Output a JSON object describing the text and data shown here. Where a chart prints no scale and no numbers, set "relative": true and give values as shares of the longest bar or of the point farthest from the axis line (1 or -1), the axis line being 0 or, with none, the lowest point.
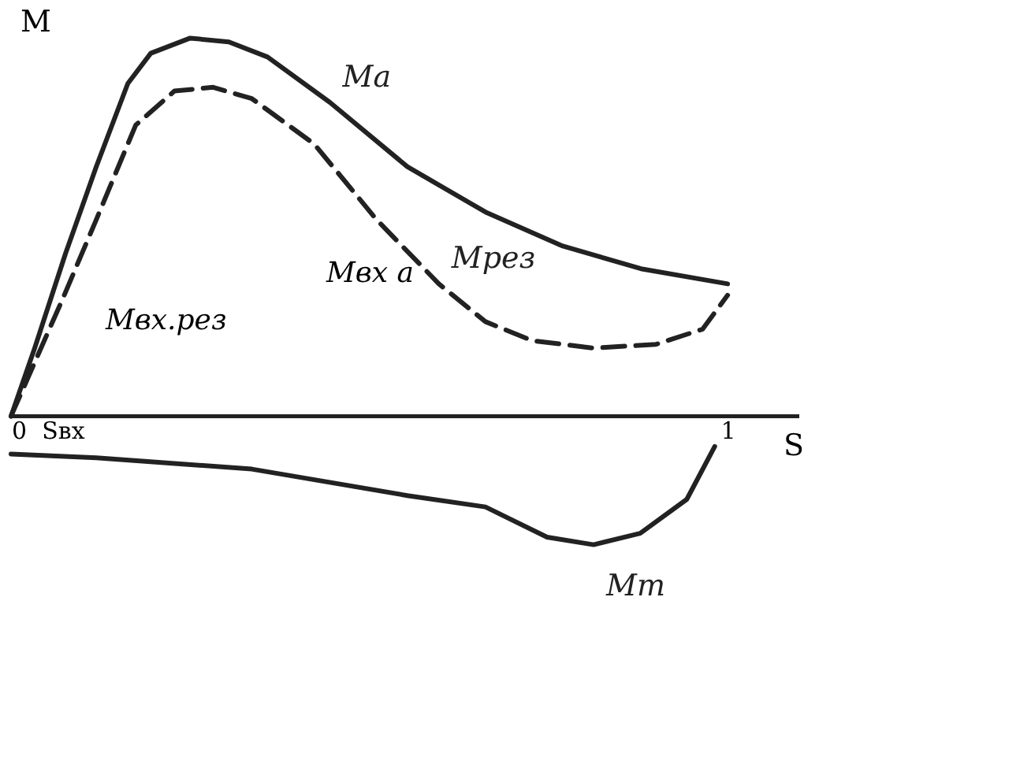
{
  "chart_data": {
    "type": "line",
    "relative": true,
    "xlabel": "S",
    "ylabel": "M",
    "xlim": [
      0,
      1.1
    ],
    "xticks": [
      0,
      {
        "value": 0.072,
        "label": "Sвх"
      },
      1
    ],
    "line_style": "solid",
    "marker": "none",
    "grid": false,
    "series": [
      {
        "name": "Ma",
        "color": "#222222",
        "x": [
          0,
          0.033,
          0.076,
          0.119,
          0.163,
          0.195,
          0.25,
          0.304,
          0.358,
          0.445,
          0.553,
          0.662,
          0.77,
          0.879,
          1
        ],
        "values": [
          0,
          0.18,
          0.43,
          0.66,
          0.88,
          0.96,
          1.0,
          0.99,
          0.95,
          0.83,
          0.66,
          0.54,
          0.45,
          0.39,
          0.35
        ]
      },
      {
        "name": "Mрез",
        "color": "#222222",
        "line_style": "dashed",
        "x": [
          0,
          0.072,
          0.119,
          0.174,
          0.228,
          0.282,
          0.336,
          0.423,
          0.51,
          0.597,
          0.662,
          0.727,
          0.813,
          0.9,
          0.965,
          1
        ],
        "values": [
          0,
          0.31,
          0.52,
          0.77,
          0.86,
          0.87,
          0.84,
          0.72,
          0.52,
          0.35,
          0.25,
          0.2,
          0.18,
          0.19,
          0.23,
          0.32
        ]
      },
      {
        "name": "Mт",
        "color": "#222222",
        "x": [
          0,
          0.119,
          0.336,
          0.553,
          0.662,
          0.748,
          0.813,
          0.878,
          0.943,
          0.982
        ],
        "values": [
          -0.1,
          -0.11,
          -0.14,
          -0.21,
          -0.24,
          -0.32,
          -0.34,
          -0.31,
          -0.22,
          -0.08
        ]
      }
    ],
    "annotations": [
      "Mвх а",
      "Mвх.рез"
    ]
  }
}
